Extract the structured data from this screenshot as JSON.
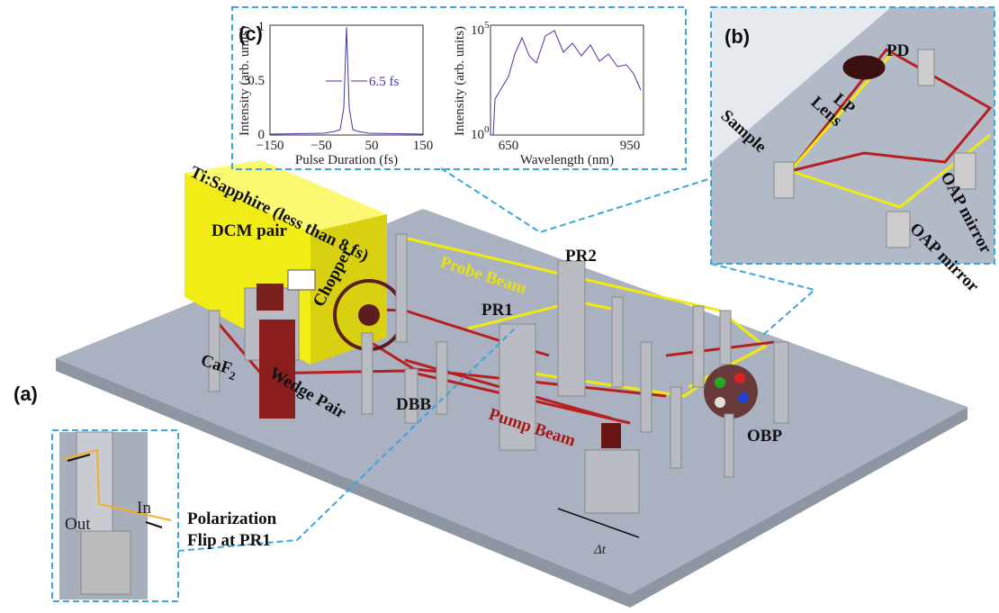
{
  "panels": {
    "a": "(a)",
    "b": "(b)",
    "c": "(c)"
  },
  "inset_c": {
    "pulse": {
      "y_label": "Intensity (arb. units)",
      "x_label": "Pulse Duration (fs)",
      "x_ticks": [
        "−150",
        "−50",
        "50",
        "150"
      ],
      "y_ticks": [
        "0",
        "0.5",
        "1"
      ],
      "annotation": "6.5 fs"
    },
    "spectrum": {
      "y_label": "Intensity (arb. units)",
      "x_label": "Wavelength (nm)",
      "x_ticks": [
        "650",
        "950"
      ],
      "y_ticks": [
        {
          "base": "10",
          "exp": "0"
        },
        {
          "base": "10",
          "exp": "5"
        }
      ]
    }
  },
  "setup": {
    "laser": "Ti:Sapphire (less than 8 fs)",
    "dcm": "DCM pair",
    "chopper": "Chopper",
    "probe": "Probe Beam",
    "pr2": "PR2",
    "pr1": "PR1",
    "caf": "CaF",
    "caf_sub": "2",
    "wedge": "Wedge Pair",
    "dbb": "DBB",
    "pump": "Pump Beam",
    "obp": "OBP",
    "delay": "Δt"
  },
  "inset_b": {
    "pd": "PD",
    "lp": "LP",
    "lens": "Lens",
    "sample": "Sample",
    "oap1": "OAP mirror",
    "oap2": "OAP mirror"
  },
  "inset_a": {
    "out": "Out",
    "in": "In",
    "caption_1": "Polarization",
    "caption_2": "Flip at PR1"
  }
}
